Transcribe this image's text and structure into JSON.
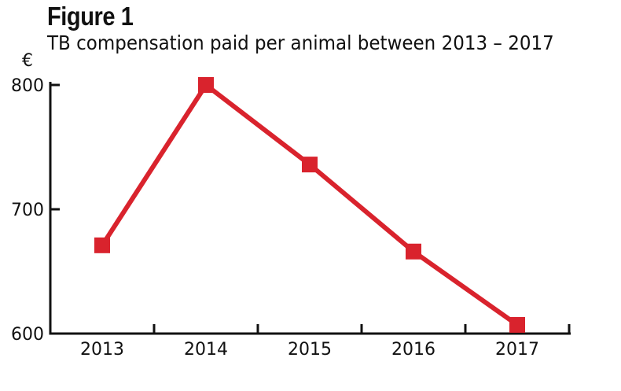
{
  "figure": {
    "label": "Figure 1",
    "subtitle": "TB compensation paid per animal between 2013 – 2017"
  },
  "chart_data": {
    "type": "line",
    "title": "Figure 1",
    "subtitle": "TB compensation paid per animal between 2013 – 2017",
    "xlabel": "",
    "ylabel": "€",
    "categories": [
      "2013",
      "2014",
      "2015",
      "2016",
      "2017"
    ],
    "series": [
      {
        "values": [
          671,
          800,
          736,
          666,
          607
        ]
      }
    ],
    "ylim": [
      600,
      800
    ],
    "yticks": [
      600,
      700,
      800
    ],
    "grid": false,
    "legend": "none",
    "colors": {
      "line": "#d9232d",
      "axis": "#111111"
    }
  }
}
